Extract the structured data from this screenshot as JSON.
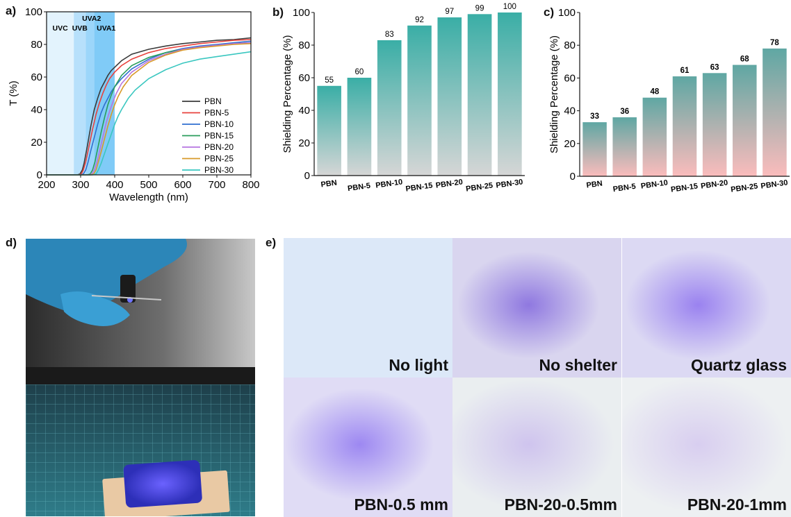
{
  "panel_labels": {
    "a": "a)",
    "b": "b)",
    "c": "c)",
    "d": "d)",
    "e": "e)"
  },
  "chart_data": [
    {
      "type": "line",
      "panel": "a)",
      "xlabel": "Wavelength (nm)",
      "ylabel": "T (%)",
      "xlim": [
        200,
        800
      ],
      "ylim": [
        0,
        100
      ],
      "xticks": [
        200,
        300,
        400,
        500,
        600,
        700,
        800
      ],
      "yticks": [
        0,
        20,
        40,
        60,
        80,
        100
      ],
      "legend": "center-right",
      "grid": false,
      "bands": [
        {
          "label": "UVC",
          "range": [
            200,
            280
          ],
          "color": "#e3f3fd"
        },
        {
          "label": "UVB",
          "range": [
            280,
            315
          ],
          "color": "#b7e0fb"
        },
        {
          "label": "UVA2",
          "range": [
            315,
            340
          ],
          "color": "#9cd6fa"
        },
        {
          "label": "UVA1",
          "range": [
            340,
            400
          ],
          "color": "#80cbf7"
        }
      ],
      "series": [
        {
          "name": "PBN",
          "color": "#3a3a3a",
          "x": [
            200,
            290,
            298,
            305,
            310,
            320,
            330,
            340,
            350,
            360,
            370,
            380,
            390,
            400,
            420,
            450,
            500,
            550,
            600,
            650,
            700,
            750,
            800
          ],
          "y": [
            0,
            0,
            0.5,
            3,
            7,
            18,
            30,
            40,
            47,
            53,
            57,
            61,
            64,
            66,
            70,
            74,
            77,
            79,
            80.5,
            81.5,
            82.5,
            83,
            84
          ]
        },
        {
          "name": "PBN-5",
          "color": "#e8413c",
          "x": [
            200,
            295,
            302,
            308,
            315,
            325,
            335,
            345,
            355,
            365,
            375,
            385,
            400,
            420,
            450,
            500,
            550,
            600,
            650,
            700,
            750,
            800
          ],
          "y": [
            0,
            0,
            0.5,
            3,
            8,
            18,
            28,
            37,
            44,
            50,
            55,
            59,
            63,
            67,
            71,
            75,
            77.5,
            79,
            80.5,
            81.5,
            82.5,
            83
          ]
        },
        {
          "name": "PBN-10",
          "color": "#2f6fd0",
          "x": [
            200,
            300,
            308,
            315,
            322,
            330,
            340,
            350,
            360,
            370,
            380,
            390,
            400,
            420,
            450,
            500,
            550,
            600,
            650,
            700,
            750,
            800
          ],
          "y": [
            0,
            0,
            0.5,
            3,
            8,
            15,
            23,
            31,
            38,
            43,
            47,
            51,
            54,
            59,
            65,
            71,
            75,
            77.5,
            79,
            80,
            81,
            82
          ]
        },
        {
          "name": "PBN-15",
          "color": "#2a9d5c",
          "x": [
            200,
            320,
            328,
            335,
            342,
            350,
            360,
            370,
            380,
            390,
            400,
            420,
            450,
            500,
            550,
            600,
            650,
            700,
            750,
            800
          ],
          "y": [
            0,
            0,
            0.5,
            3,
            8,
            16,
            26,
            35,
            43,
            49,
            54,
            61,
            67,
            72,
            75,
            77,
            78.5,
            79.5,
            80.5,
            81
          ]
        },
        {
          "name": "PBN-20",
          "color": "#b675e0",
          "x": [
            200,
            325,
            333,
            340,
            348,
            355,
            365,
            375,
            385,
            395,
            405,
            420,
            450,
            500,
            550,
            600,
            650,
            700,
            750,
            800
          ],
          "y": [
            0,
            0,
            0.5,
            3,
            8,
            14,
            23,
            32,
            39,
            45,
            50,
            56,
            63,
            70,
            74,
            77,
            78.5,
            79.5,
            80.5,
            81
          ]
        },
        {
          "name": "PBN-25",
          "color": "#d89a2a",
          "x": [
            200,
            330,
            338,
            345,
            352,
            360,
            370,
            380,
            390,
            400,
            410,
            425,
            450,
            500,
            550,
            600,
            650,
            700,
            750,
            800
          ],
          "y": [
            0,
            0,
            0.5,
            3,
            8,
            14,
            22,
            30,
            37,
            43,
            48,
            54,
            61,
            69,
            73.5,
            76.5,
            78,
            79,
            80,
            80.5
          ]
        },
        {
          "name": "PBN-30",
          "color": "#3ac7c0",
          "x": [
            200,
            335,
            345,
            352,
            360,
            370,
            380,
            390,
            400,
            410,
            420,
            440,
            460,
            500,
            550,
            600,
            650,
            700,
            750,
            800
          ],
          "y": [
            0,
            0,
            0.5,
            3,
            7,
            13,
            19,
            25,
            31,
            36,
            40,
            47,
            52,
            59,
            64.5,
            68.5,
            71,
            72.5,
            74,
            75.5
          ]
        }
      ]
    },
    {
      "type": "bar",
      "panel": "b)",
      "categories": [
        "PBN",
        "PBN-5",
        "PBN-10",
        "PBN-15",
        "PBN-20",
        "PBN-25",
        "PBN-30"
      ],
      "values": [
        55,
        60,
        83,
        92,
        97,
        99,
        100
      ],
      "xlabel": "",
      "ylabel": "Shielding Percentage (%)",
      "ylim": [
        0,
        100
      ],
      "yticks": [
        0,
        20,
        40,
        60,
        80,
        100
      ],
      "gradient": [
        "#3aaea6",
        "#d6d6d6"
      ]
    },
    {
      "type": "bar",
      "panel": "c)",
      "categories": [
        "PBN",
        "PBN-5",
        "PBN-10",
        "PBN-15",
        "PBN-20",
        "PBN-25",
        "PBN-30"
      ],
      "values": [
        33,
        36,
        48,
        61,
        63,
        68,
        78
      ],
      "xlabel": "",
      "ylabel": "Shielding Percentage (%)",
      "ylim": [
        0,
        100
      ],
      "yticks": [
        0,
        20,
        40,
        60,
        80,
        100
      ],
      "gradient": [
        "#5fa7a3",
        "#fbbcbc"
      ]
    }
  ],
  "photo_grid": {
    "cells": [
      {
        "caption": "No light",
        "base": "#dce8f8",
        "glow": "#dce8f8",
        "strength": 0
      },
      {
        "caption": "No shelter",
        "base": "#d9d5ef",
        "glow": "#8f78e0",
        "strength": 0.9
      },
      {
        "caption": "Quartz glass",
        "base": "#dcd9f3",
        "glow": "#9a82f0",
        "strength": 0.85
      },
      {
        "caption": "PBN-0.5 mm",
        "base": "#e0dcf5",
        "glow": "#9d88f2",
        "strength": 0.8
      },
      {
        "caption": "PBN-20-0.5mm",
        "base": "#eaeef0",
        "glow": "#cfc4ee",
        "strength": 0.45
      },
      {
        "caption": "PBN-20-1mm",
        "base": "#edf0f2",
        "glow": "#d8cef0",
        "strength": 0.35
      }
    ]
  }
}
